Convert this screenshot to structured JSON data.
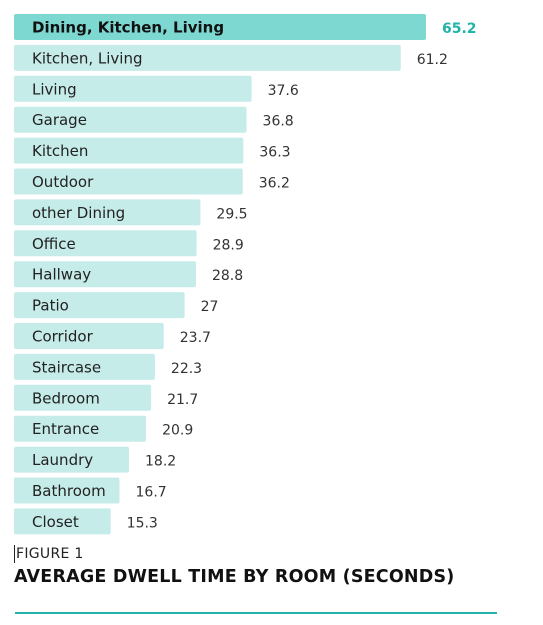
{
  "caption": {
    "figure_label": "FIGURE 1",
    "title": "AVERAGE DWELL TIME BY ROOM (SECONDS)"
  },
  "colors": {
    "bar": "#c6ecea",
    "highlight_bar": "#7ed8d2",
    "highlight_value": "#1fb3aa",
    "rule": "#1fb3aa"
  },
  "chart_data": {
    "type": "bar",
    "orientation": "horizontal",
    "title": "AVERAGE DWELL TIME BY ROOM (SECONDS)",
    "categories": [
      "Dining, Kitchen, Living",
      "Kitchen, Living",
      "Living",
      "Garage",
      "Kitchen",
      "Outdoor",
      "other Dining",
      "Office",
      "Hallway",
      "Patio",
      "Corridor",
      "Staircase",
      "Bedroom",
      "Entrance",
      "Laundry",
      "Bathroom",
      "Closet"
    ],
    "values": [
      65.2,
      61.2,
      37.6,
      36.8,
      36.3,
      36.2,
      29.5,
      28.9,
      28.8,
      27,
      23.7,
      22.3,
      21.7,
      20.9,
      18.2,
      16.7,
      15.3
    ],
    "value_labels": [
      "65.2",
      "61.2",
      "37.6",
      "36.8",
      "36.3",
      "36.2",
      "29.5",
      "28.9",
      "28.8",
      "27",
      "23.7",
      "22.3",
      "21.7",
      "20.9",
      "18.2",
      "16.7",
      "15.3"
    ],
    "highlight_index": 0,
    "xlim": [
      0,
      65.2
    ],
    "grid": false,
    "legend": "none"
  }
}
